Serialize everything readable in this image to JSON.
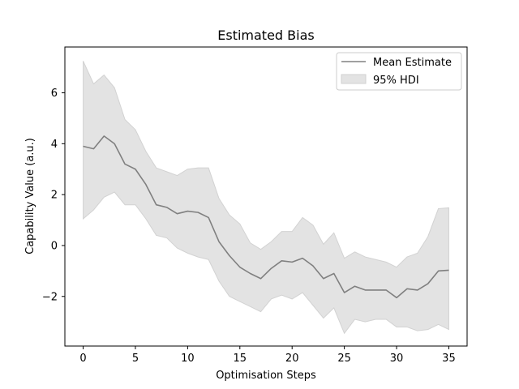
{
  "chart_data": {
    "type": "line",
    "title": "Estimated Bias",
    "xlabel": "Optimisation Steps",
    "ylabel": "Capability Value (a.u.)",
    "xlim": [
      -1.75,
      36.75
    ],
    "ylim": [
      -3.95,
      7.8
    ],
    "x_ticks": [
      0,
      5,
      10,
      15,
      20,
      25,
      30,
      35
    ],
    "y_ticks": [
      -2,
      0,
      2,
      4,
      6
    ],
    "grid": false,
    "legend_position": "top-right",
    "x": [
      0,
      1,
      2,
      3,
      4,
      5,
      6,
      7,
      8,
      9,
      10,
      11,
      12,
      13,
      14,
      15,
      16,
      17,
      18,
      19,
      20,
      21,
      22,
      23,
      24,
      25,
      26,
      27,
      28,
      29,
      30,
      31,
      32,
      33,
      34,
      35
    ],
    "series": [
      {
        "name": "Mean Estimate",
        "kind": "line",
        "color": "#808080",
        "values": [
          3.9,
          3.8,
          4.3,
          4.0,
          3.2,
          3.0,
          2.4,
          1.6,
          1.5,
          1.25,
          1.35,
          1.3,
          1.1,
          0.15,
          -0.4,
          -0.85,
          -1.1,
          -1.3,
          -0.9,
          -0.6,
          -0.65,
          -0.5,
          -0.8,
          -1.3,
          -1.1,
          -1.85,
          -1.6,
          -1.75,
          -1.75,
          -1.75,
          -2.05,
          -1.7,
          -1.75,
          -1.5,
          -1.0,
          -0.97
        ]
      },
      {
        "name": "95% HDI",
        "kind": "band",
        "color": "#e3e3e3",
        "edge_color": "#d2d2d2",
        "lower": [
          1.05,
          1.4,
          1.9,
          2.1,
          1.6,
          1.6,
          1.05,
          0.4,
          0.3,
          -0.1,
          -0.3,
          -0.45,
          -0.55,
          -1.4,
          -2.0,
          -2.2,
          -2.4,
          -2.6,
          -2.1,
          -1.95,
          -2.1,
          -1.85,
          -2.35,
          -2.85,
          -2.45,
          -3.45,
          -2.9,
          -3.0,
          -2.9,
          -2.9,
          -3.2,
          -3.2,
          -3.35,
          -3.3,
          -3.1,
          -3.3
        ],
        "upper": [
          7.25,
          6.35,
          6.7,
          6.2,
          4.95,
          4.55,
          3.7,
          3.05,
          2.9,
          2.75,
          3.0,
          3.05,
          3.05,
          1.85,
          1.2,
          0.85,
          0.1,
          -0.15,
          0.15,
          0.55,
          0.55,
          1.1,
          0.8,
          0.05,
          0.5,
          -0.5,
          -0.25,
          -0.45,
          -0.55,
          -0.65,
          -0.85,
          -0.45,
          -0.3,
          0.35,
          1.45,
          1.48
        ]
      }
    ]
  }
}
